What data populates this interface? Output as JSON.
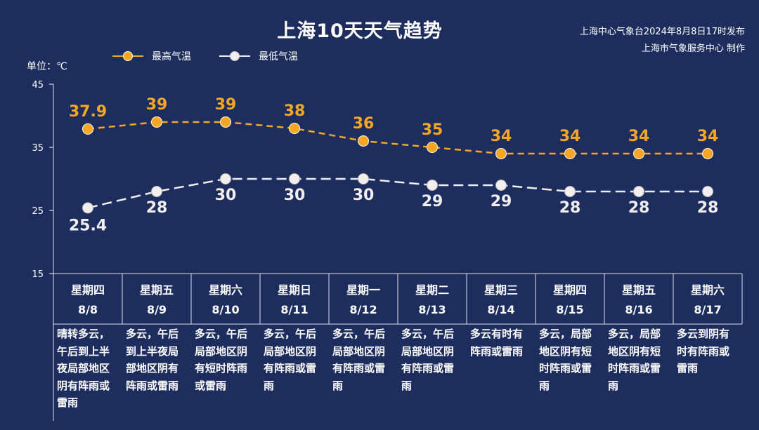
{
  "title": "上海10天天气趋势",
  "publisher": {
    "line1": "上海中心气象台2024年8月8日17时发布",
    "line2": "上海市气象服务中心 制作"
  },
  "unit_label": "单位：℃",
  "colors": {
    "background": "#1d2d5e",
    "high": "#f5a623",
    "low": "#f2eeee",
    "grid": "#ffffff"
  },
  "chart_data": {
    "type": "line",
    "x": [
      "8/8",
      "8/9",
      "8/10",
      "8/11",
      "8/12",
      "8/13",
      "8/14",
      "8/15",
      "8/16",
      "8/17"
    ],
    "weekdays": [
      "星期四",
      "星期五",
      "星期六",
      "星期日",
      "星期一",
      "星期二",
      "星期三",
      "星期四",
      "星期五",
      "星期六"
    ],
    "descriptions": [
      "晴转多云，午后到上半夜局部地区阴有阵雨或雷雨",
      "多云，午后到上半夜局部地区阴有阵雨或雷雨",
      "多云，午后局部地区阴有短时阵雨或雷雨",
      "多云，午后局部地区阴有阵雨或雷雨",
      "多云，午后局部地区阴有阵雨或雷雨",
      "多云，午后局部地区阴有阵雨或雷雨",
      "多云有时有阵雨或雷雨",
      "多云，局部地区阴有短时阵雨或雷雨",
      "多云，局部地区阴有短时阵雨或雷雨",
      "多云到阴有时有阵雨或雷雨"
    ],
    "series": [
      {
        "name": "最高气温",
        "values": [
          37.9,
          39,
          39,
          38,
          36,
          35,
          34,
          34,
          34,
          34
        ],
        "labels": [
          "37.9",
          "39",
          "39",
          "38",
          "36",
          "35",
          "34",
          "34",
          "34",
          "34"
        ]
      },
      {
        "name": "最低气温",
        "values": [
          25.4,
          28,
          30,
          30,
          30,
          29,
          29,
          28,
          28,
          28
        ],
        "labels": [
          "25.4",
          "28",
          "30",
          "30",
          "30",
          "29",
          "29",
          "28",
          "28",
          "28"
        ]
      }
    ],
    "ylim": [
      15,
      45
    ],
    "yticks": [
      15,
      25,
      35,
      45
    ],
    "ytick_labels": [
      "15",
      "25",
      "35",
      "45"
    ],
    "legend": "top-left",
    "grid": false
  }
}
